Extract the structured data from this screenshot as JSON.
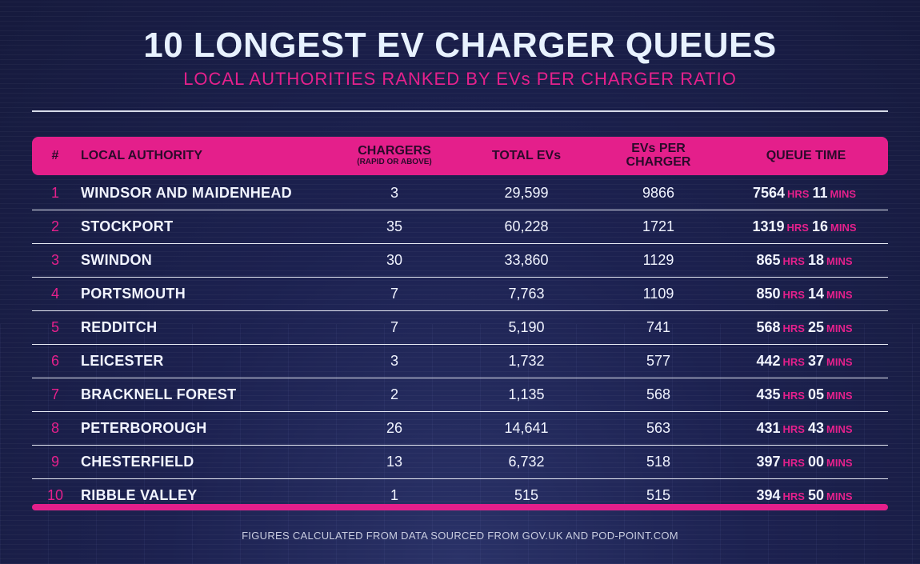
{
  "title": "10 LONGEST EV CHARGER QUEUES",
  "subtitle": "LOCAL AUTHORITIES RANKED BY EVs PER CHARGER RATIO",
  "footer": "FIGURES CALCULATED FROM DATA SOURCED FROM GOV.UK AND POD-POINT.COM",
  "colors": {
    "background": "#1a1f45",
    "accent": "#e41f8b",
    "text": "#f1f4ff"
  },
  "chart_data": {
    "type": "table",
    "title": "10 LONGEST EV CHARGER QUEUES",
    "subtitle": "LOCAL AUTHORITIES RANKED BY EVs PER CHARGER RATIO",
    "headers": {
      "rank": "#",
      "authority": "LOCAL AUTHORITY",
      "chargers": "CHARGERS",
      "chargers_sub": "(RAPID OR ABOVE)",
      "total_evs": "TOTAL EVs",
      "evs_per_1": "EVs PER",
      "evs_per_2": "CHARGER",
      "queue": "QUEUE TIME"
    },
    "units": {
      "hours": "HRS",
      "minutes": "MINS"
    },
    "rows": [
      {
        "rank": "1",
        "authority": "WINDSOR AND MAIDENHEAD",
        "chargers": "3",
        "total_evs": "29,599",
        "evs_per_charger": "9866",
        "hours": "7564",
        "minutes": "11"
      },
      {
        "rank": "2",
        "authority": "STOCKPORT",
        "chargers": "35",
        "total_evs": "60,228",
        "evs_per_charger": "1721",
        "hours": "1319",
        "minutes": "16"
      },
      {
        "rank": "3",
        "authority": "SWINDON",
        "chargers": "30",
        "total_evs": "33,860",
        "evs_per_charger": "1129",
        "hours": "865",
        "minutes": "18"
      },
      {
        "rank": "4",
        "authority": "PORTSMOUTH",
        "chargers": "7",
        "total_evs": "7,763",
        "evs_per_charger": "1109",
        "hours": "850",
        "minutes": "14"
      },
      {
        "rank": "5",
        "authority": "REDDITCH",
        "chargers": "7",
        "total_evs": "5,190",
        "evs_per_charger": "741",
        "hours": "568",
        "minutes": "25"
      },
      {
        "rank": "6",
        "authority": "LEICESTER",
        "chargers": "3",
        "total_evs": "1,732",
        "evs_per_charger": "577",
        "hours": "442",
        "minutes": "37"
      },
      {
        "rank": "7",
        "authority": "BRACKNELL FOREST",
        "chargers": "2",
        "total_evs": "1,135",
        "evs_per_charger": "568",
        "hours": "435",
        "minutes": "05"
      },
      {
        "rank": "8",
        "authority": "PETERBOROUGH",
        "chargers": "26",
        "total_evs": "14,641",
        "evs_per_charger": "563",
        "hours": "431",
        "minutes": "43"
      },
      {
        "rank": "9",
        "authority": "CHESTERFIELD",
        "chargers": "13",
        "total_evs": "6,732",
        "evs_per_charger": "518",
        "hours": "397",
        "minutes": "00"
      },
      {
        "rank": "10",
        "authority": "RIBBLE VALLEY",
        "chargers": "1",
        "total_evs": "515",
        "evs_per_charger": "515",
        "hours": "394",
        "minutes": "50"
      }
    ]
  }
}
